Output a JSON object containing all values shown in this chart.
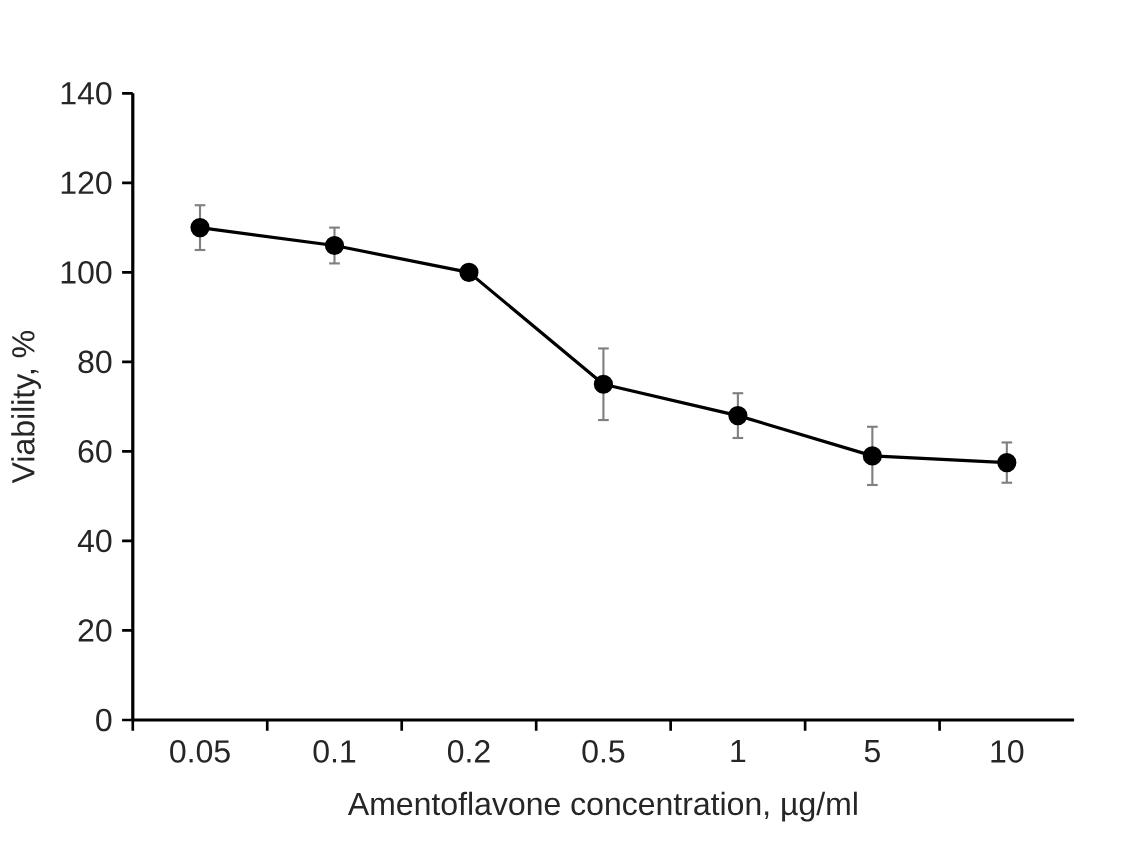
{
  "chart_data": {
    "type": "line",
    "xlabel": "Amentoflavone concentration, µg/ml",
    "ylabel": "Viability, %",
    "categories": [
      "0.05",
      "0.1",
      "0.2",
      "0.5",
      "1",
      "5",
      "10"
    ],
    "values": [
      110,
      106,
      100,
      75,
      68,
      59,
      57.5
    ],
    "errors": [
      5,
      4,
      1.5,
      8,
      5,
      6.5,
      4.5
    ],
    "color": "#000000",
    "marker": "circle",
    "line_style": "solid",
    "ylim": [
      0,
      140
    ],
    "yticks": [
      0,
      20,
      40,
      60,
      80,
      100,
      120,
      140
    ],
    "grid": false
  }
}
